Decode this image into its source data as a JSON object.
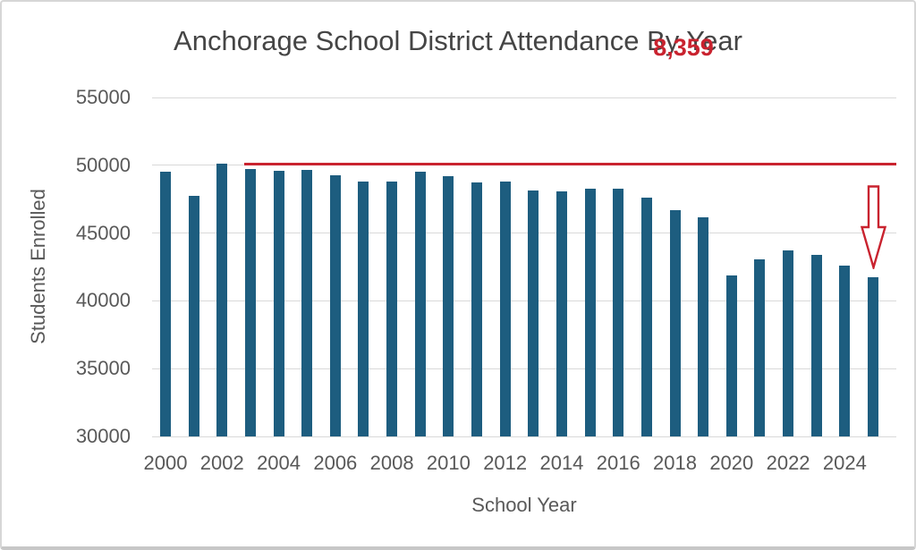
{
  "chart_data": {
    "type": "bar",
    "title": "Anchorage School District Attendance By Year",
    "xlabel": "School Year",
    "ylabel": "Students Enrolled",
    "categories": [
      2000,
      2001,
      2002,
      2003,
      2004,
      2005,
      2006,
      2007,
      2008,
      2009,
      2010,
      2011,
      2012,
      2013,
      2014,
      2015,
      2016,
      2017,
      2018,
      2019,
      2020,
      2021,
      2022,
      2023,
      2024,
      2025
    ],
    "values": [
      49500,
      47750,
      50099,
      49750,
      49600,
      49650,
      49250,
      48800,
      48800,
      49550,
      49200,
      48750,
      48800,
      48150,
      48100,
      48300,
      48250,
      47600,
      46700,
      46150,
      41900,
      43050,
      43750,
      43400,
      42600,
      41740
    ],
    "ylim": [
      30000,
      55000
    ],
    "yticks": [
      55000,
      50000,
      45000,
      40000,
      35000,
      30000
    ],
    "xticks": [
      2000,
      2002,
      2004,
      2006,
      2008,
      2010,
      2012,
      2014,
      2016,
      2018,
      2020,
      2022,
      2024
    ],
    "grid": "horizontal",
    "legend": "none",
    "bar_color": "#1d5d7f",
    "gridline_color": "#d9d9d9",
    "text_color": "#595959",
    "title_color": "#454545",
    "annotation": {
      "label": "8,359",
      "color": "#c9232f",
      "line_value": 50099,
      "line_start_year": 2003,
      "arrow_points_to_year": 2025
    }
  }
}
